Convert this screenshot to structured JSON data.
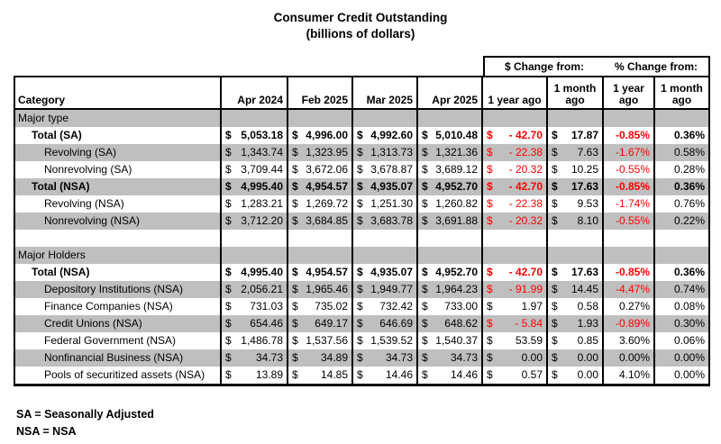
{
  "title": {
    "line1": "Consumer Credit Outstanding",
    "line2": "(billions of dollars)"
  },
  "change_headers": {
    "dollar": "$ Change from:",
    "percent": "% Change from:"
  },
  "columns": [
    "Category",
    "Apr 2024",
    "Feb 2025",
    "Mar 2025",
    "Apr 2025",
    "1 year ago",
    "1 month ago",
    "1 year ago",
    "1 month ago"
  ],
  "currency_symbol": "$",
  "colors": {
    "shade": "#bfbfbf",
    "negative": "#ff0000",
    "border": "#000000"
  },
  "rows": [
    {
      "kind": "section",
      "label": "Major type",
      "shaded": true
    },
    {
      "kind": "data",
      "label": "Total (SA)",
      "indent": 1,
      "bold": true,
      "shaded": false,
      "values": [
        "5,053.18",
        "4,996.00",
        "4,992.60",
        "5,010.48",
        "- 42.70",
        "17.87",
        "-0.85%",
        "0.36%"
      ]
    },
    {
      "kind": "data",
      "label": "Revolving (SA)",
      "indent": 2,
      "bold": false,
      "shaded": true,
      "values": [
        "1,343.74",
        "1,323.95",
        "1,313.73",
        "1,321.36",
        "- 22.38",
        "7.63",
        "-1.67%",
        "0.58%"
      ]
    },
    {
      "kind": "data",
      "label": "Nonrevolving (SA)",
      "indent": 2,
      "bold": false,
      "shaded": false,
      "values": [
        "3,709.44",
        "3,672.06",
        "3,678.87",
        "3,689.12",
        "- 20.32",
        "10.25",
        "-0.55%",
        "0.28%"
      ]
    },
    {
      "kind": "data",
      "label": "Total (NSA)",
      "indent": 1,
      "bold": true,
      "shaded": true,
      "values": [
        "4,995.40",
        "4,954.57",
        "4,935.07",
        "4,952.70",
        "- 42.70",
        "17.63",
        "-0.85%",
        "0.36%"
      ]
    },
    {
      "kind": "data",
      "label": "Revolving (NSA)",
      "indent": 2,
      "bold": false,
      "shaded": false,
      "values": [
        "1,283.21",
        "1,269.72",
        "1,251.30",
        "1,260.82",
        "- 22.38",
        "9.53",
        "-1.74%",
        "0.76%"
      ]
    },
    {
      "kind": "data",
      "label": "Nonrevolving (NSA)",
      "indent": 2,
      "bold": false,
      "shaded": true,
      "values": [
        "3,712.20",
        "3,684.85",
        "3,683.78",
        "3,691.88",
        "- 20.32",
        "8.10",
        "-0.55%",
        "0.22%"
      ]
    },
    {
      "kind": "spacer",
      "shaded": false
    },
    {
      "kind": "section",
      "label": "Major Holders",
      "shaded": true
    },
    {
      "kind": "data",
      "label": "Total (NSA)",
      "indent": 1,
      "bold": true,
      "shaded": false,
      "values": [
        "4,995.40",
        "4,954.57",
        "4,935.07",
        "4,952.70",
        "- 42.70",
        "17.63",
        "-0.85%",
        "0.36%"
      ]
    },
    {
      "kind": "data",
      "label": "Depository Institutions (NSA)",
      "indent": 2,
      "bold": false,
      "shaded": true,
      "values": [
        "2,056.21",
        "1,965.46",
        "1,949.77",
        "1,964.23",
        "- 91.99",
        "14.45",
        "-4.47%",
        "0.74%"
      ]
    },
    {
      "kind": "data",
      "label": "Finance Companies (NSA)",
      "indent": 2,
      "bold": false,
      "shaded": false,
      "values": [
        "731.03",
        "735.02",
        "732.42",
        "733.00",
        "1.97",
        "0.58",
        "0.27%",
        "0.08%"
      ]
    },
    {
      "kind": "data",
      "label": "Credit Unions (NSA)",
      "indent": 2,
      "bold": false,
      "shaded": true,
      "values": [
        "654.46",
        "649.17",
        "646.69",
        "648.62",
        "- 5.84",
        "1.93",
        "-0.89%",
        "0.30%"
      ]
    },
    {
      "kind": "data",
      "label": "Federal Government (NSA)",
      "indent": 2,
      "bold": false,
      "shaded": false,
      "values": [
        "1,486.78",
        "1,537.56",
        "1,539.52",
        "1,540.37",
        "53.59",
        "0.85",
        "3.60%",
        "0.06%"
      ]
    },
    {
      "kind": "data",
      "label": "Nonfinancial Business (NSA)",
      "indent": 2,
      "bold": false,
      "shaded": true,
      "values": [
        "34.73",
        "34.89",
        "34.73",
        "34.73",
        "0.00",
        "0.00",
        "0.00%",
        "0.00%"
      ]
    },
    {
      "kind": "data",
      "label": "Pools of securitized assets (NSA)",
      "indent": 2,
      "bold": false,
      "shaded": false,
      "values": [
        "13.89",
        "14.85",
        "14.46",
        "14.46",
        "0.57",
        "0.00",
        "4.10%",
        "0.00%"
      ]
    }
  ],
  "footnotes": [
    "SA = Seasonally Adjusted",
    "NSA = NSA"
  ]
}
